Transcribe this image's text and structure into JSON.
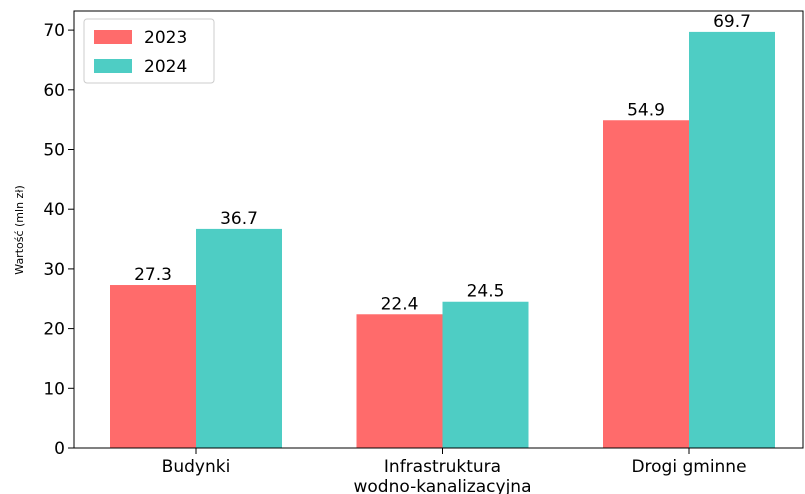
{
  "chart_data": {
    "type": "bar",
    "y_label": "Wartość (mln zł)",
    "categories": [
      "Budynki",
      "Infrastruktura\nwodno-kanalizacyjna",
      "Drogi gminne"
    ],
    "series": [
      {
        "name": "2023",
        "color": "#ff6b6b",
        "values": [
          27.3,
          22.4,
          54.9
        ]
      },
      {
        "name": "2024",
        "color": "#4ecdc4",
        "values": [
          36.7,
          24.5,
          69.7
        ]
      }
    ],
    "ylim": [
      0,
      73.2
    ],
    "yticks": [
      0,
      10,
      20,
      30,
      40,
      50,
      60,
      70
    ],
    "legend": "upper left",
    "grid": false
  }
}
